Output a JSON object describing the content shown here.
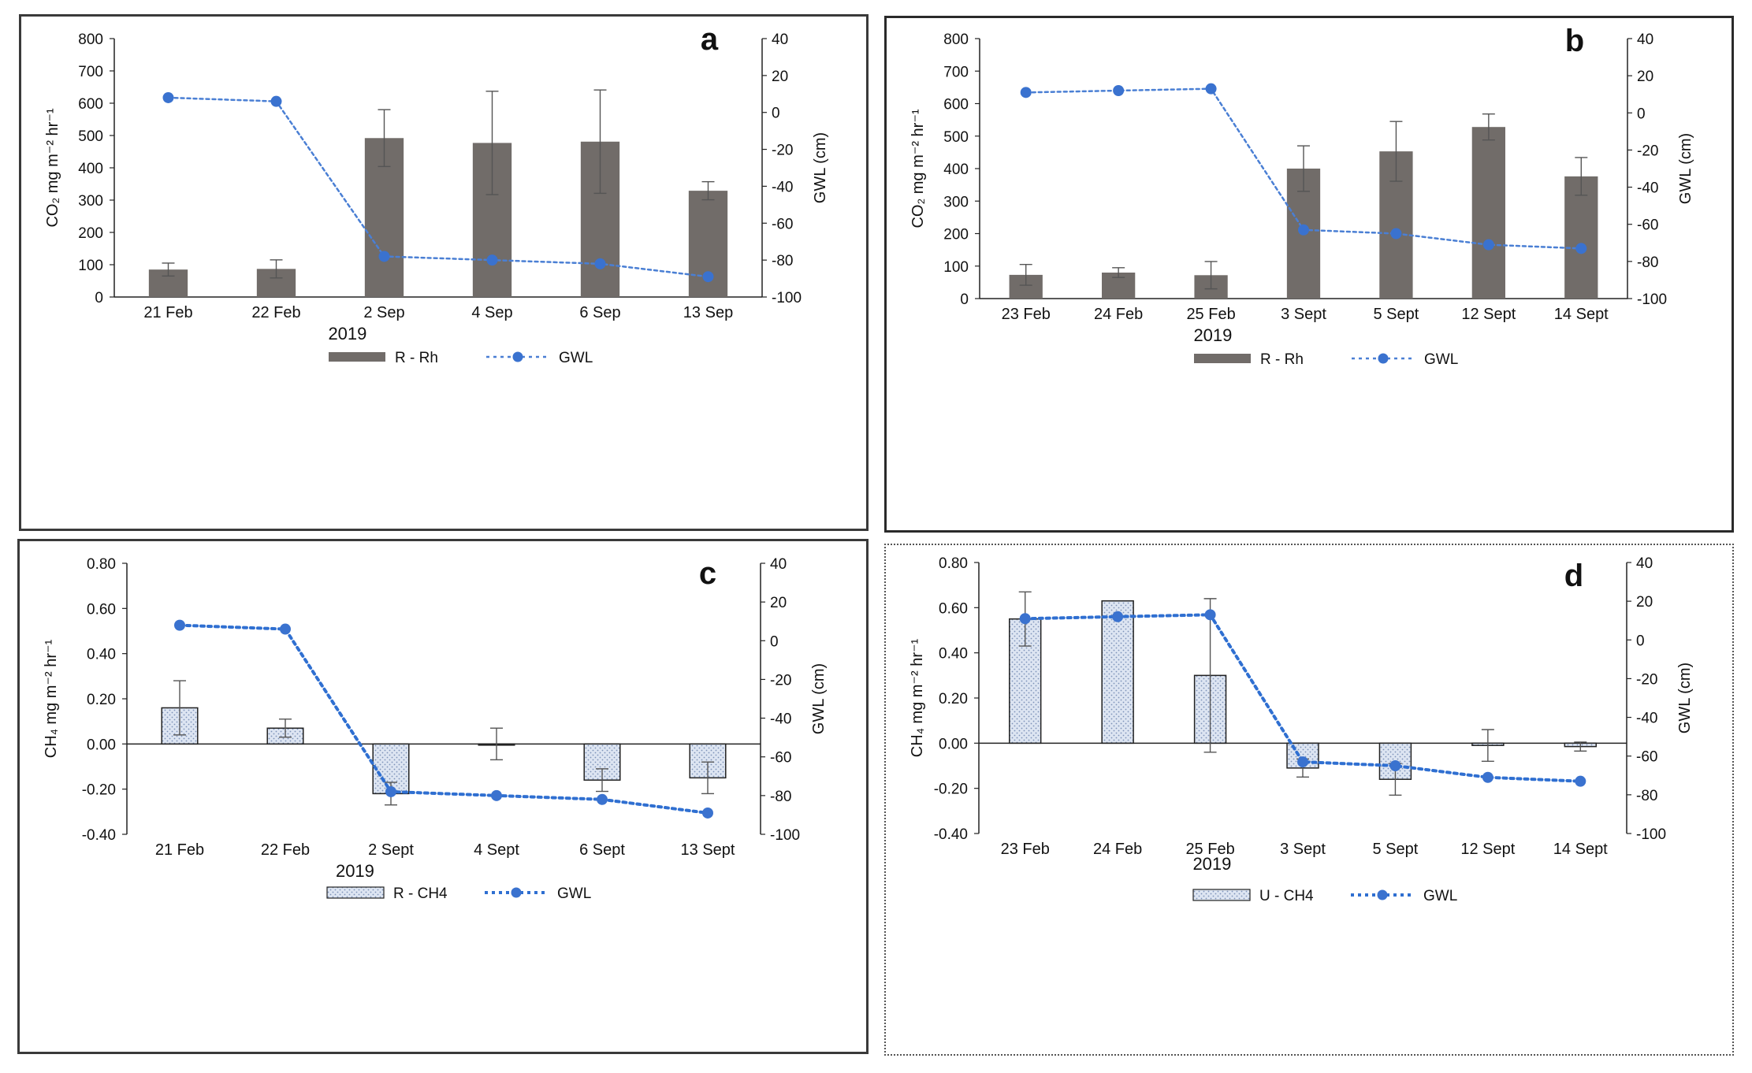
{
  "chart_data": [
    {
      "panel": "a",
      "type": "bar",
      "bar_style": "solid",
      "categories": [
        "21 Feb",
        "22 Feb",
        "2 Sep",
        "4 Sep",
        "6 Sep",
        "13 Sep"
      ],
      "series": [
        {
          "name": "R - Rh",
          "axis": "left",
          "kind": "bar",
          "values": [
            85,
            87,
            492,
            477,
            481,
            329
          ],
          "errors": [
            20,
            28,
            88,
            160,
            160,
            28
          ]
        },
        {
          "name": "GWL",
          "axis": "right",
          "kind": "line",
          "values": [
            8,
            6,
            -78,
            -80,
            -82,
            -89
          ]
        }
      ],
      "xlabel": "2019",
      "ylabel": "CO₂ mg m⁻² hr⁻¹",
      "ylabel_right": "GWL (cm)",
      "ylim": [
        0,
        800
      ],
      "yticks": [
        0,
        100,
        200,
        300,
        400,
        500,
        600,
        700,
        800
      ],
      "ylim_right": [
        -100,
        40
      ],
      "yticks_right": [
        -100,
        -80,
        -60,
        -40,
        -20,
        0,
        20,
        40
      ],
      "legend": [
        "R - Rh",
        "GWL"
      ],
      "legend_position": "bottom",
      "letter": "a"
    },
    {
      "panel": "b",
      "type": "bar",
      "bar_style": "solid",
      "categories": [
        "23 Feb",
        "24 Feb",
        "25 Feb",
        "3 Sept",
        "5 Sept",
        "12 Sept",
        "14 Sept"
      ],
      "series": [
        {
          "name": "R - Rh",
          "axis": "left",
          "kind": "bar",
          "values": [
            73,
            80,
            72,
            400,
            453,
            528,
            376
          ],
          "errors": [
            32,
            15,
            42,
            70,
            92,
            40,
            58
          ]
        },
        {
          "name": "GWL",
          "axis": "right",
          "kind": "line",
          "values": [
            11,
            12,
            13,
            -63,
            -65,
            -71,
            -73
          ]
        }
      ],
      "xlabel": "2019",
      "ylabel": "CO₂ mg m⁻² hr⁻¹",
      "ylabel_right": "GWL (cm)",
      "ylim": [
        0,
        800
      ],
      "yticks": [
        0,
        100,
        200,
        300,
        400,
        500,
        600,
        700,
        800
      ],
      "ylim_right": [
        -100,
        40
      ],
      "yticks_right": [
        -100,
        -80,
        -60,
        -40,
        -20,
        0,
        20,
        40
      ],
      "legend": [
        "R - Rh",
        "GWL"
      ],
      "legend_position": "bottom",
      "letter": "b"
    },
    {
      "panel": "c",
      "type": "bar",
      "bar_style": "dotted",
      "categories": [
        "21 Feb",
        "22 Feb",
        "2 Sept",
        "4 Sept",
        "6 Sept",
        "13 Sept"
      ],
      "series": [
        {
          "name": "R - CH4",
          "axis": "left",
          "kind": "bar",
          "values": [
            0.16,
            0.07,
            -0.22,
            0.0,
            -0.16,
            -0.15
          ],
          "errors": [
            0.12,
            0.04,
            0.05,
            0.07,
            0.05,
            0.07
          ]
        },
        {
          "name": "GWL",
          "axis": "right",
          "kind": "line",
          "values": [
            8,
            6,
            -78,
            -80,
            -82,
            -89
          ]
        }
      ],
      "xlabel": "2019",
      "ylabel": "CH₄ mg m⁻² hr⁻¹",
      "ylabel_right": "GWL (cm)",
      "ylim": [
        -0.4,
        0.8
      ],
      "yticks": [
        "-0.40",
        "-0.20",
        "0.00",
        "0.20",
        "0.40",
        "0.60",
        "0.80"
      ],
      "ylim_right": [
        -100,
        40
      ],
      "yticks_right": [
        -100,
        -80,
        -60,
        -40,
        -20,
        0,
        20,
        40
      ],
      "legend": [
        "R - CH4",
        "GWL"
      ],
      "legend_position": "bottom",
      "letter": "c"
    },
    {
      "panel": "d",
      "type": "bar",
      "bar_style": "dotted",
      "categories": [
        "23 Feb",
        "24 Feb",
        "25 Feb",
        "3 Sept",
        "5 Sept",
        "12 Sept",
        "14 Sept"
      ],
      "series": [
        {
          "name": "U - CH4",
          "axis": "left",
          "kind": "bar",
          "values": [
            0.55,
            0.63,
            0.3,
            -0.11,
            -0.16,
            -0.01,
            -0.015
          ],
          "errors": [
            0.12,
            0.0,
            0.34,
            0.04,
            0.07,
            0.07,
            0.02
          ]
        },
        {
          "name": "GWL",
          "axis": "right",
          "kind": "line",
          "values": [
            11,
            12,
            13,
            -63,
            -65,
            -71,
            -73
          ]
        }
      ],
      "xlabel": "2019",
      "ylabel": "CH₄ mg m⁻² hr⁻¹",
      "ylabel_right": "GWL (cm)",
      "ylim": [
        -0.4,
        0.8
      ],
      "yticks": [
        "-0.40",
        "-0.20",
        "0.00",
        "0.20",
        "0.40",
        "0.60",
        "0.80"
      ],
      "ylim_right": [
        -100,
        40
      ],
      "yticks_right": [
        -100,
        -80,
        -60,
        -40,
        -20,
        0,
        20,
        40
      ],
      "legend": [
        "U - CH4",
        "GWL"
      ],
      "legend_position": "bottom",
      "letter": "d"
    }
  ],
  "colors": {
    "bar_solid": "#716c69",
    "bar_dotted_fill": "#dde5f2",
    "bar_dotted_dot": "#7d92b8",
    "bar_dotted_edge": "#222222",
    "gwl_line": "#4a7fd4",
    "gwl_line_dark": "#2f6fd1",
    "gwl_marker": "#3a72cf",
    "axis": "#222222"
  }
}
